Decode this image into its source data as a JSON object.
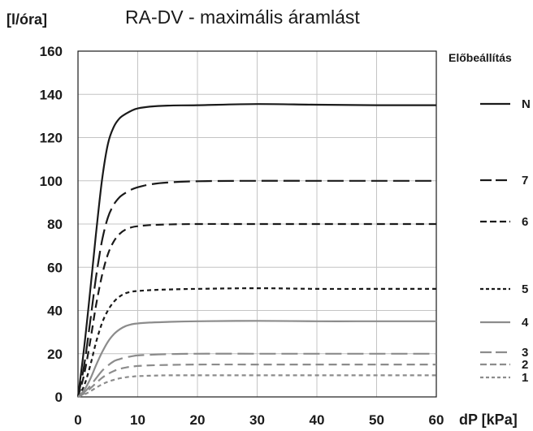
{
  "chart_data": {
    "type": "line",
    "title": "RA-DV - maximális áramlást",
    "ylabel": "[l/óra]",
    "xlabel": "dP [kPa]",
    "xlim": [
      0,
      60
    ],
    "ylim": [
      0,
      160
    ],
    "x_ticks": [
      0,
      10,
      20,
      30,
      40,
      50,
      60
    ],
    "y_ticks": [
      0,
      20,
      40,
      60,
      80,
      100,
      120,
      140,
      160
    ],
    "grid": true,
    "legend_title": "Előbeállítás",
    "legend_position": "right",
    "x": [
      0,
      1,
      2,
      3,
      4,
      5,
      6,
      7,
      8,
      9,
      10,
      12,
      15,
      20,
      30,
      40,
      50,
      60
    ],
    "series": [
      {
        "name": "N",
        "color": "#1a1a1a",
        "dash": "solid",
        "width": 2.2,
        "values": [
          0,
          22,
          48,
          75,
          100,
          117,
          125,
          129,
          131,
          132.5,
          133.5,
          134.3,
          134.8,
          135,
          135.5,
          135.2,
          135,
          135
        ]
      },
      {
        "name": "7",
        "color": "#1a1a1a",
        "dash": "long",
        "width": 2.2,
        "values": [
          0,
          14,
          34,
          55,
          72,
          83,
          89,
          92.5,
          94.5,
          96,
          97,
          98.3,
          99.2,
          99.8,
          100,
          100,
          100,
          100
        ]
      },
      {
        "name": "6",
        "color": "#1a1a1a",
        "dash": "medium",
        "width": 2.2,
        "values": [
          0,
          10,
          25,
          42,
          56,
          66,
          72,
          75.5,
          77.5,
          78.5,
          79,
          79.5,
          79.8,
          80,
          80,
          80,
          80,
          80
        ]
      },
      {
        "name": "5",
        "color": "#1a1a1a",
        "dash": "short",
        "width": 2.2,
        "values": [
          0,
          5,
          14,
          25,
          34,
          40,
          44,
          46.5,
          48,
          48.7,
          49,
          49.4,
          49.7,
          50,
          50.3,
          50,
          50,
          50
        ]
      },
      {
        "name": "4",
        "color": "#8c8c8c",
        "dash": "solid",
        "width": 2.2,
        "values": [
          0,
          3,
          8,
          14.5,
          20.5,
          25.5,
          29,
          31.3,
          32.8,
          33.6,
          34,
          34.4,
          34.7,
          35,
          35.2,
          35,
          35,
          35
        ]
      },
      {
        "name": "3",
        "color": "#8c8c8c",
        "dash": "long",
        "width": 2.2,
        "values": [
          0,
          2,
          5,
          8.5,
          12,
          14.5,
          16.5,
          17.5,
          18.3,
          18.8,
          19.2,
          19.5,
          19.8,
          20,
          20,
          20,
          20,
          20
        ]
      },
      {
        "name": "2",
        "color": "#8c8c8c",
        "dash": "medium",
        "width": 2.2,
        "values": [
          0,
          1.5,
          3.8,
          6.3,
          8.8,
          10.6,
          12,
          13,
          13.6,
          14,
          14.3,
          14.6,
          14.8,
          15,
          15,
          15,
          15,
          15
        ]
      },
      {
        "name": "1",
        "color": "#8c8c8c",
        "dash": "short",
        "width": 2.2,
        "values": [
          0,
          1,
          2.5,
          4.2,
          5.8,
          7,
          7.9,
          8.6,
          9.1,
          9.4,
          9.6,
          9.8,
          10,
          10,
          10,
          10,
          10,
          10
        ]
      }
    ]
  }
}
